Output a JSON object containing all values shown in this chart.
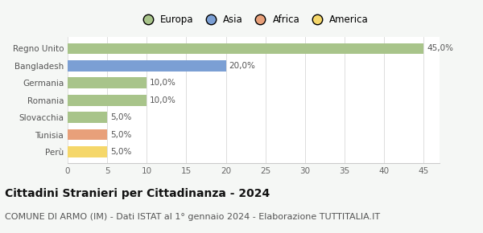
{
  "categories": [
    "Perù",
    "Tunisia",
    "Slovacchia",
    "Romania",
    "Germania",
    "Bangladesh",
    "Regno Unito"
  ],
  "values": [
    5.0,
    5.0,
    5.0,
    10.0,
    10.0,
    20.0,
    45.0
  ],
  "colors": [
    "#f5d76a",
    "#e8a07a",
    "#a8c48a",
    "#a8c48a",
    "#a8c48a",
    "#7b9fd4",
    "#a8c48a"
  ],
  "labels": [
    "5,0%",
    "5,0%",
    "5,0%",
    "10,0%",
    "10,0%",
    "20,0%",
    "45,0%"
  ],
  "legend_items": [
    "Europa",
    "Asia",
    "Africa",
    "America"
  ],
  "legend_colors": [
    "#a8c48a",
    "#7b9fd4",
    "#e8a07a",
    "#f5d76a"
  ],
  "xlim": [
    0,
    47
  ],
  "xticks": [
    0,
    5,
    10,
    15,
    20,
    25,
    30,
    35,
    40,
    45
  ],
  "title": "Cittadini Stranieri per Cittadinanza - 2024",
  "subtitle": "COMUNE DI ARMO (IM) - Dati ISTAT al 1° gennaio 2024 - Elaborazione TUTTITALIA.IT",
  "title_fontsize": 10,
  "subtitle_fontsize": 8,
  "label_fontsize": 7.5,
  "tick_fontsize": 7.5,
  "legend_fontsize": 8.5,
  "background_color": "#f5f7f5",
  "plot_bg_color": "#ffffff",
  "bar_height": 0.65
}
